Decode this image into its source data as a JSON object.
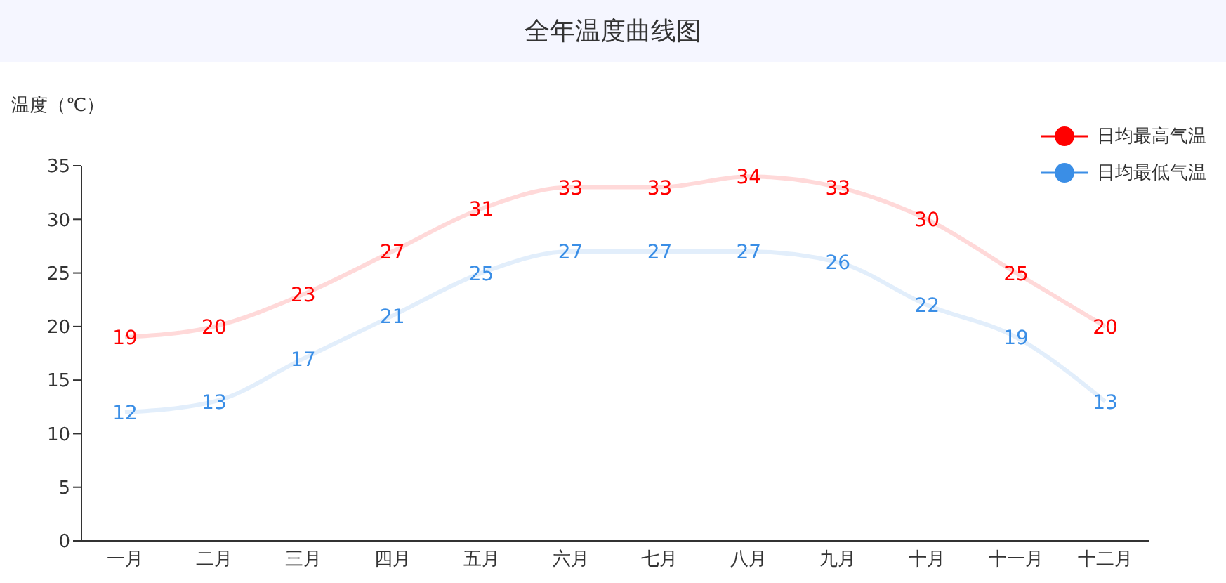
{
  "chart_data": {
    "type": "line",
    "title": "全年温度曲线图",
    "ylabel": "温度（℃）",
    "categories": [
      "一月",
      "二月",
      "三月",
      "四月",
      "五月",
      "六月",
      "七月",
      "八月",
      "九月",
      "十月",
      "十一月",
      "十二月"
    ],
    "series": [
      {
        "name": "日均最高气温",
        "color": "#ff0000",
        "values": [
          19,
          20,
          23,
          27,
          31,
          33,
          33,
          34,
          33,
          30,
          25,
          20
        ]
      },
      {
        "name": "日均最低气温",
        "color": "#3a8ee6",
        "values": [
          12,
          13,
          17,
          21,
          25,
          27,
          27,
          27,
          26,
          22,
          19,
          13
        ]
      }
    ],
    "ylim": [
      0,
      35
    ],
    "yticks": [
      0,
      5,
      10,
      15,
      20,
      25,
      30,
      35
    ],
    "grid": false,
    "legend": "top right",
    "marker": "none",
    "line_style": "solid",
    "data_labels": true
  }
}
